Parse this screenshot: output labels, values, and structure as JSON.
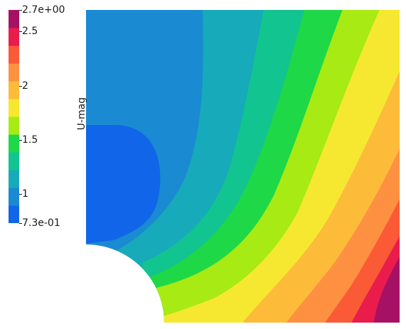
{
  "colorbar": {
    "title": "U-mag",
    "range": [
      0.73,
      2.7
    ],
    "ticks": [
      {
        "label": "2.7e+00",
        "value": 2.7
      },
      {
        "label": "2.5",
        "value": 2.5
      },
      {
        "label": "2",
        "value": 2.0
      },
      {
        "label": "1.5",
        "value": 1.5
      },
      {
        "label": "1",
        "value": 1.0
      },
      {
        "label": "7.3e-01",
        "value": 0.73
      }
    ],
    "colors": [
      "#1065e8",
      "#1a8ad2",
      "#16aabb",
      "#12c48f",
      "#1ed848",
      "#a8ea14",
      "#f6e830",
      "#fdbb3a",
      "#fd9141",
      "#fa5a36",
      "#ea1c4c",
      "#a61164"
    ]
  }
}
